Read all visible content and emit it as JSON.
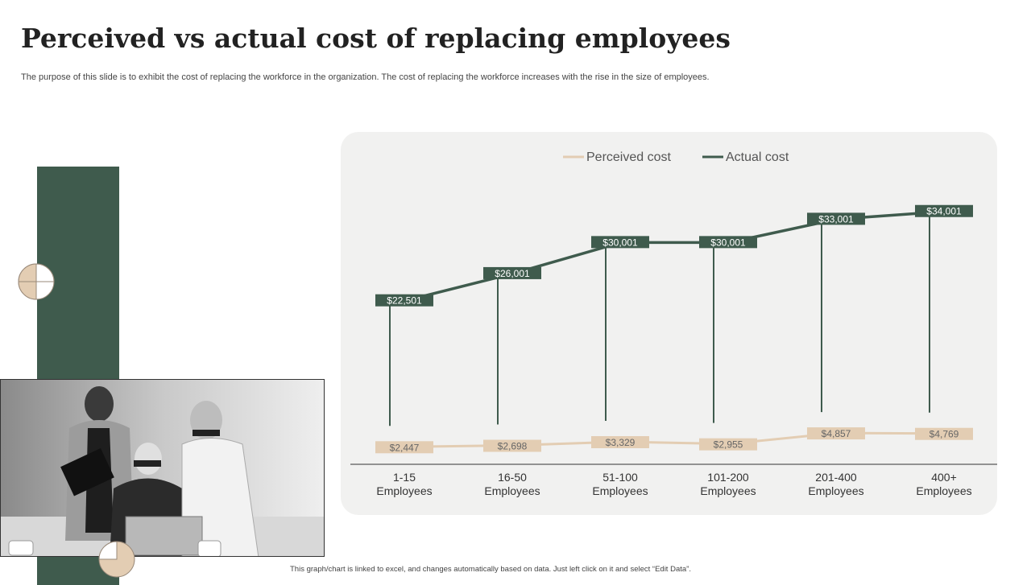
{
  "slide": {
    "title": "Perceived vs actual cost of replacing employees",
    "subtitle": "The purpose of this slide is to exhibit the cost of replacing the workforce in the organization. The cost of replacing the workforce increases with the rise in the size of employees.",
    "footnote": "This graph/chart is linked to excel, and changes automatically based on data. Just left click on it and select “Edit Data”."
  },
  "colors": {
    "accent_green": "#3f5b4d",
    "perceived": "#e3cdb3",
    "actual": "#3f5b4d",
    "panel_bg": "#f1f1f0"
  },
  "chart_data": {
    "type": "line",
    "categories": [
      [
        "1-15",
        "Employees"
      ],
      [
        "16-50",
        "Employees"
      ],
      [
        "51-100",
        "Employees"
      ],
      [
        "101-200",
        "Employees"
      ],
      [
        "201-400",
        "Employees"
      ],
      [
        "400+",
        "Employees"
      ]
    ],
    "series": [
      {
        "name": "Perceived cost",
        "values": [
          2447,
          2698,
          3329,
          2955,
          4857,
          4769
        ],
        "labels": [
          "$2,447",
          "$2,698",
          "$3,329",
          "$2,955",
          "$4,857",
          "$4,769"
        ]
      },
      {
        "name": "Actual cost",
        "values": [
          22501,
          26001,
          30001,
          30001,
          33001,
          34001
        ],
        "labels": [
          "$22,501",
          "$26,001",
          "$30,001",
          "$30,001",
          "$33,001",
          "$34,001"
        ]
      }
    ],
    "legend": "top-center",
    "grid": false,
    "ylim": [
      0,
      40000
    ]
  }
}
